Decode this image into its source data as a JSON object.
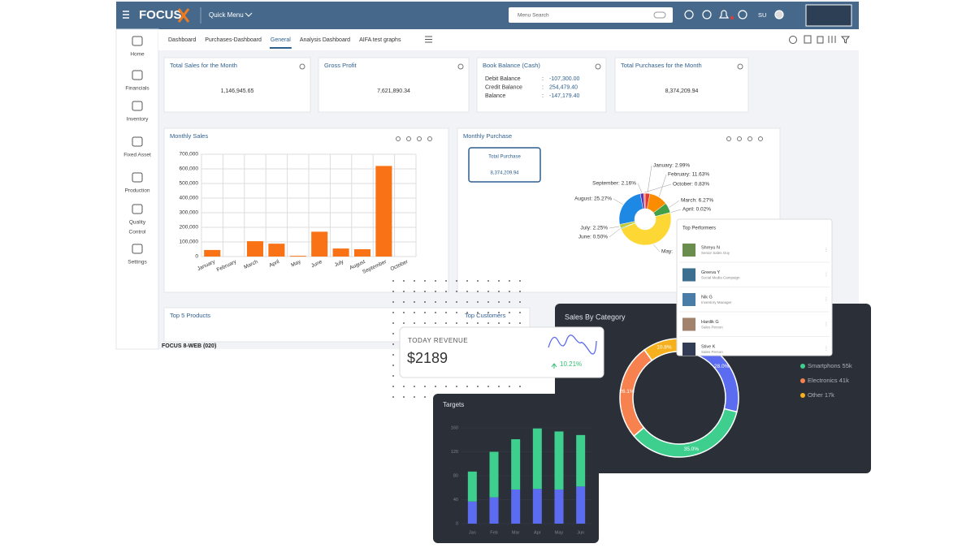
{
  "header": {
    "brand": "FOCUS",
    "quick_menu": "Quick Menu",
    "search": "Menu Search",
    "user": "SU"
  },
  "sidebar": [
    [
      "Home"
    ],
    [
      "Financials"
    ],
    [
      "Inventory"
    ],
    [
      "Fixed Asset"
    ],
    [
      "Production"
    ],
    [
      "Quality",
      "Control"
    ],
    [
      "Settings"
    ]
  ],
  "tabs": [
    "Dashboard",
    "Purchases-Dashboard",
    "General",
    "Analysis Dashboard",
    "AIFA test graphs"
  ],
  "active_tab": 2,
  "kpis": [
    {
      "title": "Total Sales for the Month",
      "value": "1,146,945.65"
    },
    {
      "title": "Gross Profit",
      "value": "7,621,890.34"
    },
    {
      "title": "Book Balance (Cash)",
      "rows": [
        [
          "Debit Balance",
          ":",
          "-107,300.00"
        ],
        [
          "Credit Balance",
          ":",
          "254,479.40"
        ],
        [
          "Balance",
          ":",
          "-147,179.40"
        ]
      ]
    },
    {
      "title": "Total Purchases for the Month",
      "value": "8,374,209.94"
    }
  ],
  "panels": {
    "top_products": "Top 5 Products",
    "top_customers": "Top Customers",
    "footer": "FOCUS 8-WEB (020)"
  },
  "chart_data": [
    {
      "type": "bar",
      "title": "Monthly Sales",
      "color": "#f97316",
      "categories": [
        "January",
        "February",
        "March",
        "April",
        "May",
        "June",
        "July",
        "August",
        "September",
        "October"
      ],
      "values": [
        45000,
        0,
        105000,
        88000,
        5000,
        170000,
        55000,
        50000,
        620000,
        0
      ],
      "ylim": [
        0,
        700000
      ],
      "yticks": [
        0,
        {
          "value": 100000,
          "label": "100,000"
        },
        {
          "value": 200000,
          "label": "200,000"
        },
        {
          "value": 300000,
          "label": "300,000"
        },
        {
          "value": 400000,
          "label": "400,000"
        },
        {
          "value": 500000,
          "label": "500,000"
        },
        {
          "value": 600000,
          "label": "600,000"
        },
        {
          "value": 700000,
          "label": "700,000"
        }
      ],
      "grid": true
    },
    {
      "type": "pie",
      "title": "Monthly Purchase",
      "summary_title": "Total Purchase",
      "summary_value": "8,374,209.94",
      "values": [
        2.99,
        11.63,
        6.27,
        0.02,
        48.08,
        0.5,
        2.25,
        25.27,
        2.16,
        0.83
      ],
      "value_labels": [
        "January: 2.99%",
        "February: 11.63%",
        "March: 6.27%",
        "April: 0.02%",
        "May:",
        "June: 0.50%",
        "July: 2.25%",
        "August: 25.27%",
        "September: 2.16%",
        "October: 0.83%"
      ],
      "colors": [
        "#e53935",
        "#fb8c00",
        "#43a047",
        "#8e24aa",
        "#fdd835",
        "#00acc1",
        "#c0ca33",
        "#1e88e5",
        "#5e35b1",
        "#ff7043"
      ]
    },
    {
      "type": "pie",
      "title": "Sales By Category",
      "values": [
        28.0,
        35.0,
        26.1,
        10.8
      ],
      "value_labels": [
        "28.0%",
        "35.0%",
        "26.1%",
        "10.8%"
      ],
      "colors": [
        "#5b6cf0",
        "#3ecf8e",
        "#f7814f",
        "#f6b01e"
      ],
      "legend": [
        {
          "label": "Smartphons 55k",
          "color": "#3ecf8e"
        },
        {
          "label": "Electronics 41k",
          "color": "#f7814f"
        },
        {
          "label": "Other 17k",
          "color": "#f6b01e"
        }
      ]
    },
    {
      "type": "stacked_bar",
      "title": "Targets",
      "categories": [
        "Jan",
        "Feb",
        "Mar",
        "Apr",
        "May",
        "Jun"
      ],
      "series": [
        {
          "color": "#5b6cf0",
          "values": [
            37,
            44,
            57,
            58,
            57,
            62
          ]
        },
        {
          "color": "#3ecf8e",
          "values": [
            50,
            76,
            84,
            101,
            97,
            86
          ]
        }
      ],
      "ylim": [
        0,
        160
      ],
      "yticks": [
        0,
        40,
        80,
        120,
        160
      ]
    }
  ],
  "revenue": {
    "title": "TODAY REVENUE",
    "value": "$2189",
    "change": "10.21%"
  },
  "top_performers": {
    "title": "Top Performers",
    "people": [
      {
        "name": "Shreyu N",
        "role": "Senior Sales Guy"
      },
      {
        "name": "Greeva Y",
        "role": "Social Media Campaign"
      },
      {
        "name": "Nik G",
        "role": "Inventory Manager"
      },
      {
        "name": "Hardik G",
        "role": "Sales Person"
      },
      {
        "name": "Stive K",
        "role": "Sales Person"
      }
    ]
  }
}
